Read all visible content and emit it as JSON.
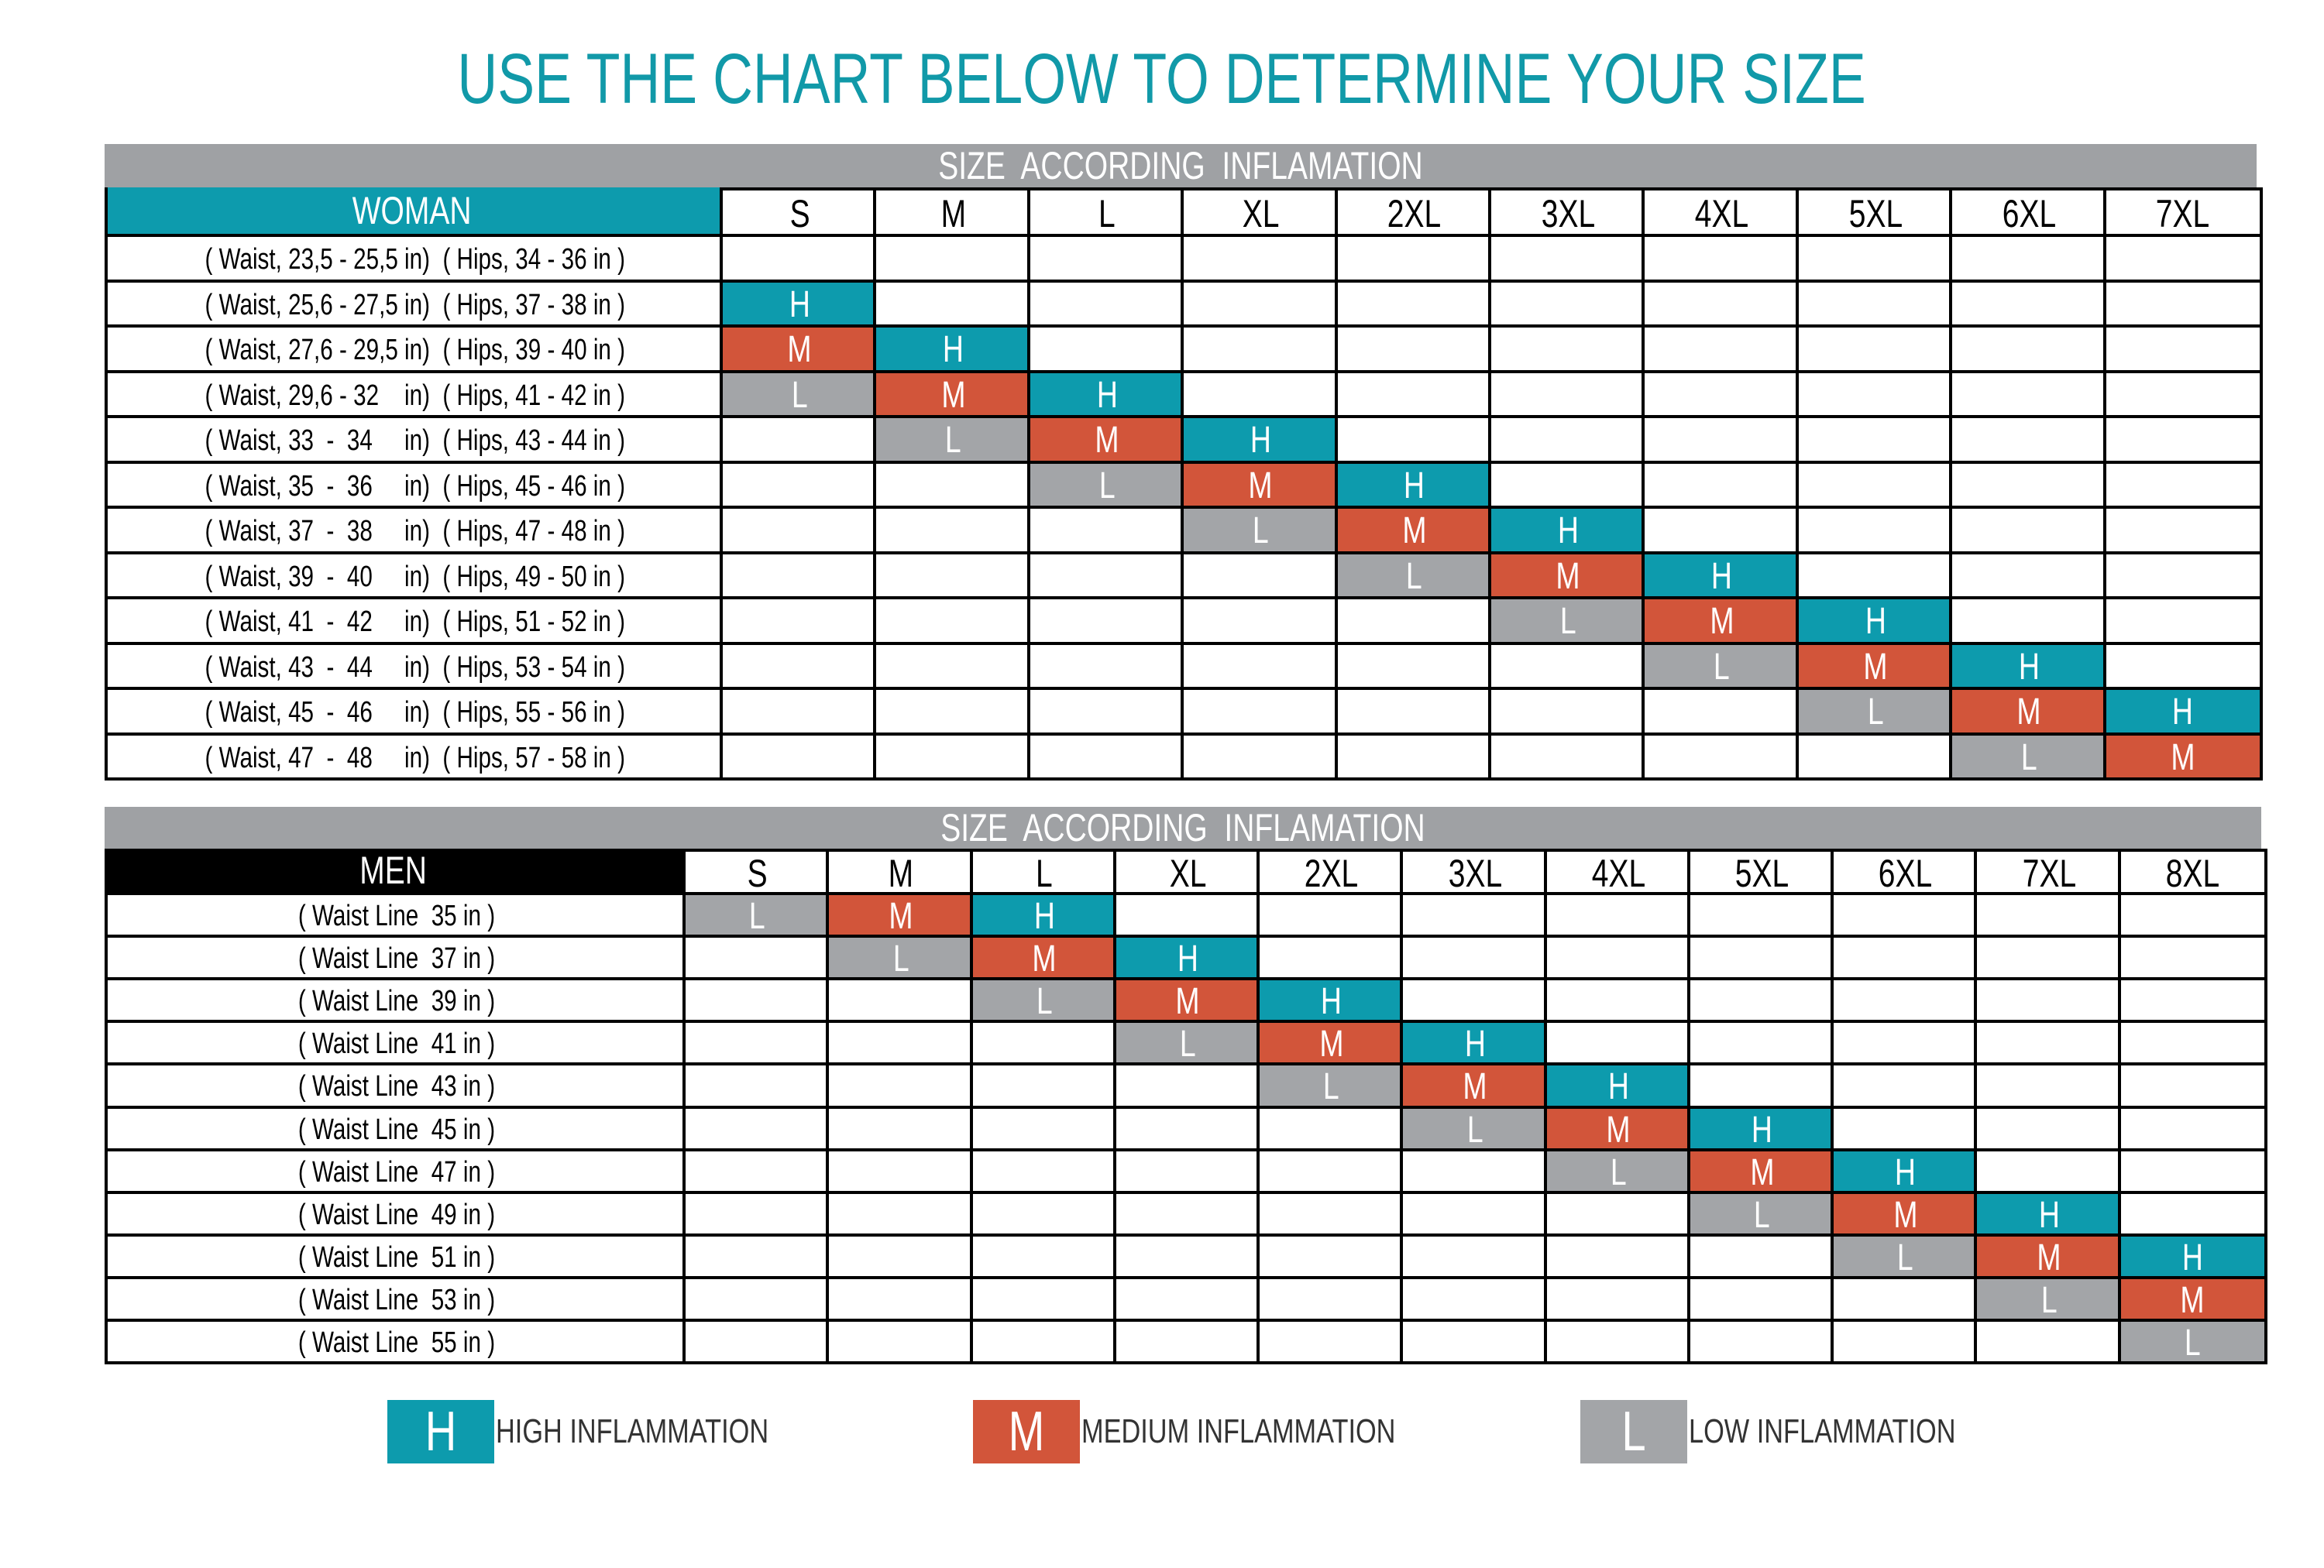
{
  "title": "USE THE CHART BELOW TO DETERMINE YOUR SIZE",
  "colors": {
    "H": "#0d9bad",
    "M": "#d2553a",
    "L": "#a3a5a8",
    "bar": "#9fa1a4",
    "woman_header": "#0d9bad",
    "men_header": "#000000",
    "title": "#1199a8"
  },
  "woman": {
    "bar_title": "SIZE  ACCORDING  INFLAMATION",
    "header": "WOMAN",
    "sizes": [
      "S",
      "M",
      "L",
      "XL",
      "2XL",
      "3XL",
      "4XL",
      "5XL",
      "6XL",
      "7XL"
    ],
    "rows": [
      {
        "label": "( Waist, 23,5 - 25,5 in)  ( Hips, 34 - 36 in )",
        "cells": [
          "",
          "",
          "",
          "",
          "",
          "",
          "",
          "",
          "",
          ""
        ]
      },
      {
        "label": "( Waist, 25,6 - 27,5 in)  ( Hips, 37 - 38 in )",
        "cells": [
          "H",
          "",
          "",
          "",
          "",
          "",
          "",
          "",
          "",
          ""
        ]
      },
      {
        "label": "( Waist, 27,6 - 29,5 in)  ( Hips, 39 - 40 in )",
        "cells": [
          "M",
          "H",
          "",
          "",
          "",
          "",
          "",
          "",
          "",
          ""
        ]
      },
      {
        "label": "( Waist, 29,6 - 32    in)  ( Hips, 41 - 42 in )",
        "cells": [
          "L",
          "M",
          "H",
          "",
          "",
          "",
          "",
          "",
          "",
          ""
        ]
      },
      {
        "label": "( Waist, 33  -  34     in)  ( Hips, 43 - 44 in )",
        "cells": [
          "",
          "L",
          "M",
          "H",
          "",
          "",
          "",
          "",
          "",
          ""
        ]
      },
      {
        "label": "( Waist, 35  -  36     in)  ( Hips, 45 - 46 in )",
        "cells": [
          "",
          "",
          "L",
          "M",
          "H",
          "",
          "",
          "",
          "",
          ""
        ]
      },
      {
        "label": "( Waist, 37  -  38     in)  ( Hips, 47 - 48 in )",
        "cells": [
          "",
          "",
          "",
          "L",
          "M",
          "H",
          "",
          "",
          "",
          ""
        ]
      },
      {
        "label": "( Waist, 39  -  40     in)  ( Hips, 49 - 50 in )",
        "cells": [
          "",
          "",
          "",
          "",
          "L",
          "M",
          "H",
          "",
          "",
          ""
        ]
      },
      {
        "label": "( Waist, 41  -  42     in)  ( Hips, 51 - 52 in )",
        "cells": [
          "",
          "",
          "",
          "",
          "",
          "L",
          "M",
          "H",
          "",
          ""
        ]
      },
      {
        "label": "( Waist, 43  -  44     in)  ( Hips, 53 - 54 in )",
        "cells": [
          "",
          "",
          "",
          "",
          "",
          "",
          "L",
          "M",
          "H",
          ""
        ]
      },
      {
        "label": "( Waist, 45  -  46     in)  ( Hips, 55 - 56 in )",
        "cells": [
          "",
          "",
          "",
          "",
          "",
          "",
          "",
          "L",
          "M",
          "H"
        ]
      },
      {
        "label": "( Waist, 47  -  48     in)  ( Hips, 57 - 58 in )",
        "cells": [
          "",
          "",
          "",
          "",
          "",
          "",
          "",
          "",
          "L",
          "M"
        ]
      }
    ]
  },
  "men": {
    "bar_title": "SIZE  ACCORDING  INFLAMATION",
    "header": "MEN",
    "sizes": [
      "S",
      "M",
      "L",
      "XL",
      "2XL",
      "3XL",
      "4XL",
      "5XL",
      "6XL",
      "7XL",
      "8XL"
    ],
    "rows": [
      {
        "label": "( Waist Line  35 in )",
        "cells": [
          "L",
          "M",
          "H",
          "",
          "",
          "",
          "",
          "",
          "",
          "",
          ""
        ]
      },
      {
        "label": "( Waist Line  37 in )",
        "cells": [
          "",
          "L",
          "M",
          "H",
          "",
          "",
          "",
          "",
          "",
          "",
          ""
        ]
      },
      {
        "label": "( Waist Line  39 in )",
        "cells": [
          "",
          "",
          "L",
          "M",
          "H",
          "",
          "",
          "",
          "",
          "",
          ""
        ]
      },
      {
        "label": "( Waist Line  41 in )",
        "cells": [
          "",
          "",
          "",
          "L",
          "M",
          "H",
          "",
          "",
          "",
          "",
          ""
        ]
      },
      {
        "label": "( Waist Line  43 in )",
        "cells": [
          "",
          "",
          "",
          "",
          "L",
          "M",
          "H",
          "",
          "",
          "",
          ""
        ]
      },
      {
        "label": "( Waist Line  45 in )",
        "cells": [
          "",
          "",
          "",
          "",
          "",
          "L",
          "M",
          "H",
          "",
          "",
          ""
        ]
      },
      {
        "label": "( Waist Line  47 in )",
        "cells": [
          "",
          "",
          "",
          "",
          "",
          "",
          "L",
          "M",
          "H",
          "",
          ""
        ]
      },
      {
        "label": "( Waist Line  49 in )",
        "cells": [
          "",
          "",
          "",
          "",
          "",
          "",
          "",
          "L",
          "M",
          "H",
          ""
        ]
      },
      {
        "label": "( Waist Line  51 in )",
        "cells": [
          "",
          "",
          "",
          "",
          "",
          "",
          "",
          "",
          "L",
          "M",
          "H"
        ]
      },
      {
        "label": "( Waist Line  53 in )",
        "cells": [
          "",
          "",
          "",
          "",
          "",
          "",
          "",
          "",
          "",
          "L",
          "M"
        ]
      },
      {
        "label": "( Waist Line  55 in )",
        "cells": [
          "",
          "",
          "",
          "",
          "",
          "",
          "",
          "",
          "",
          "",
          "L"
        ]
      }
    ]
  },
  "legend": [
    {
      "code": "H",
      "label": "HIGH INFLAMMATION"
    },
    {
      "code": "M",
      "label": "MEDIUM INFLAMMATION"
    },
    {
      "code": "L",
      "label": "LOW INFLAMMATION"
    }
  ]
}
